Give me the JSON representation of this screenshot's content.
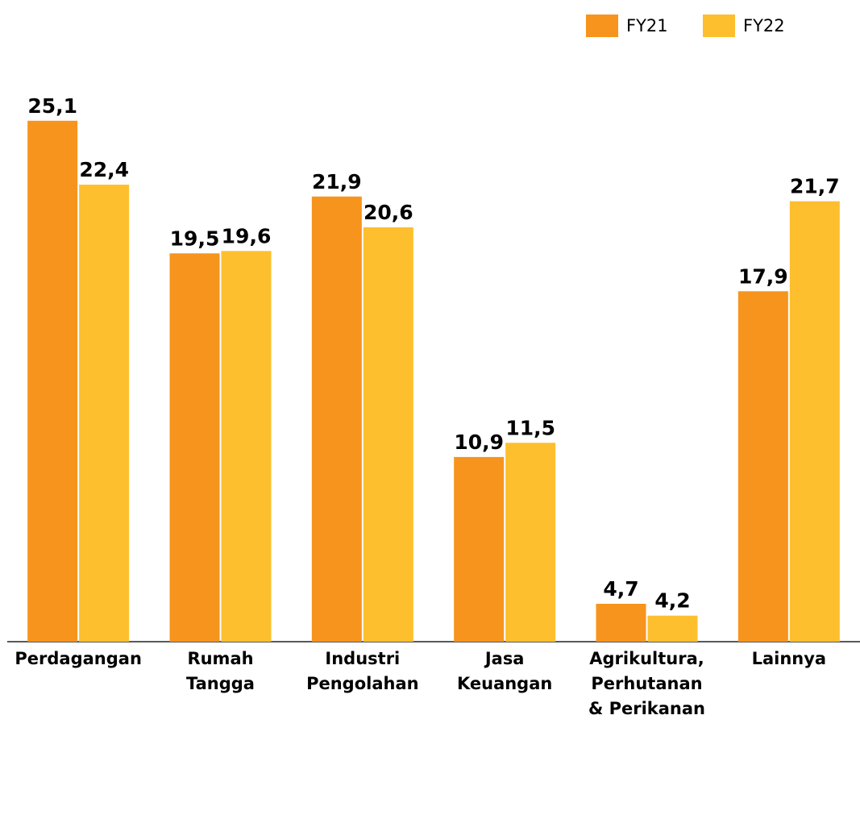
{
  "chart_data": {
    "type": "bar",
    "categories": [
      "Perdagangan",
      "Rumah\nTangga",
      "Industri\nPengolahan",
      "Jasa\nKeuangan",
      "Agrikultura,\nPerhutanan\n& Perikanan",
      "Lainnya"
    ],
    "series": [
      {
        "name": "FY21",
        "color": "#f7941d",
        "values": [
          25.1,
          19.5,
          21.9,
          10.9,
          4.7,
          17.9
        ],
        "value_labels": [
          "25,1",
          "19,5",
          "21,9",
          "10,9",
          "4,7",
          "17,9"
        ]
      },
      {
        "name": "FY22",
        "color": "#fdbf2d",
        "values": [
          22.4,
          19.6,
          20.6,
          11.5,
          4.2,
          21.7
        ],
        "value_labels": [
          "22,4",
          "19,6",
          "20,6",
          "11,5",
          "4,2",
          "21,7"
        ]
      }
    ],
    "ylim": [
      3.1,
      30.2
    ],
    "legend": "top-right"
  }
}
